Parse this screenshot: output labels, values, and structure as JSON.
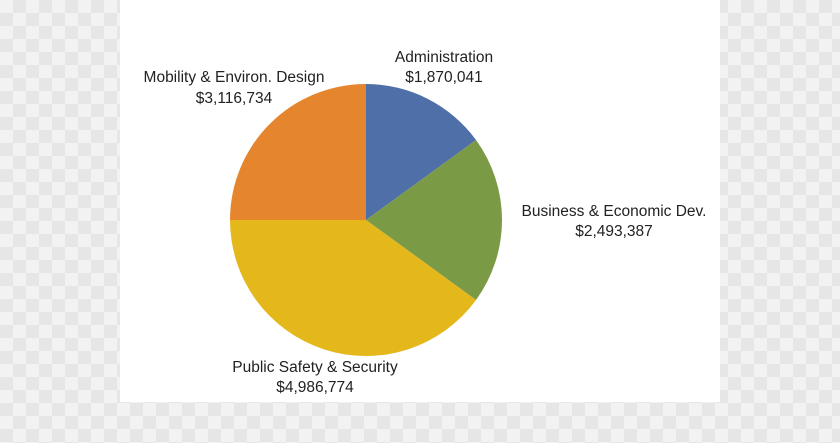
{
  "chart_data": {
    "type": "pie",
    "slices": [
      {
        "label": "Administration",
        "value_text": "$1,870,041",
        "value": 1870041,
        "color": "#4f6fa8"
      },
      {
        "label": "Business & Economic Dev.",
        "value_text": "$2,493,387",
        "value": 2493387,
        "color": "#7b9a45"
      },
      {
        "label": "Public Safety & Security",
        "value_text": "$4,986,774",
        "value": 4986774,
        "color": "#e4b71b"
      },
      {
        "label": "Mobility & Environ. Design",
        "value_text": "$3,116,734",
        "value": 3116734,
        "color": "#e5862f"
      }
    ],
    "title": "",
    "legend": "none"
  }
}
